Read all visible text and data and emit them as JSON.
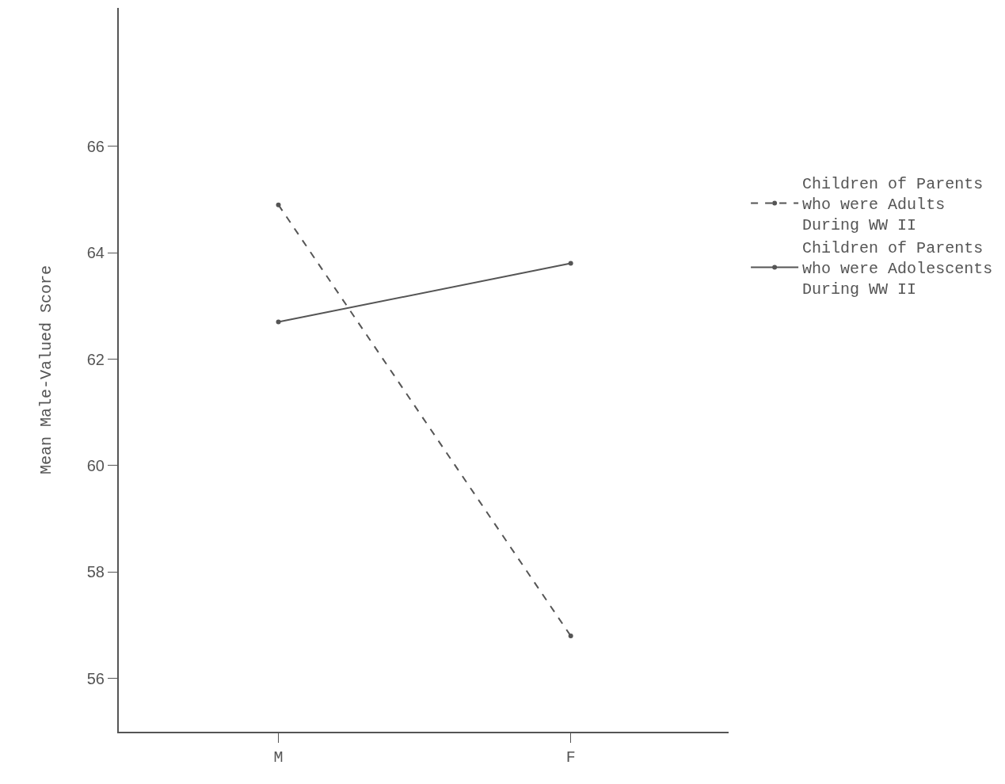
{
  "chart_data": {
    "type": "line",
    "ylabel": "Mean Male-Valued Score",
    "categories": [
      "M",
      "F"
    ],
    "series": [
      {
        "name": "Children of Parents\nwho were Adults\nDuring WW II",
        "color": "#555555",
        "values": [
          64.9,
          56.8
        ],
        "line_style": "dashed"
      },
      {
        "name": "Children of Parents\nwho were Adolescents\nDuring WW II",
        "color": "#555555",
        "values": [
          62.7,
          63.8
        ],
        "line_style": "solid"
      }
    ],
    "ylim": [
      55,
      68.6
    ],
    "yticks": [
      56,
      58,
      60,
      62,
      64,
      66
    ],
    "legend": "right",
    "marker": "circle"
  }
}
